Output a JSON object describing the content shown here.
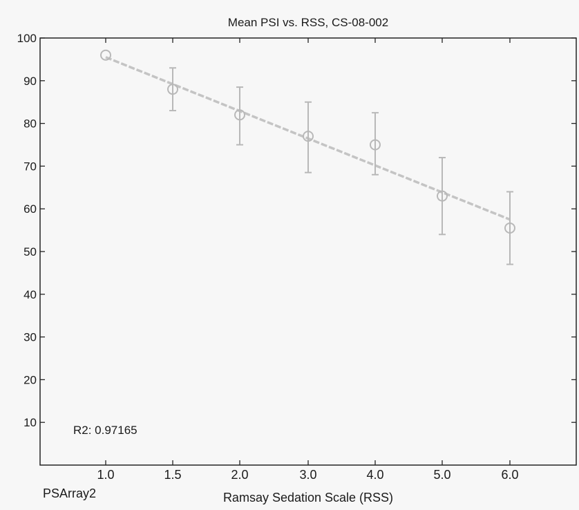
{
  "chart_data": {
    "type": "scatter",
    "title": "Mean PSI vs. RSS, CS-08-002",
    "xlabel": "Ramsay Sedation Scale (RSS)",
    "ylabel": "",
    "ylim": [
      0,
      100
    ],
    "yticks": [
      10,
      20,
      30,
      40,
      50,
      60,
      70,
      80,
      90,
      100
    ],
    "xtick_labels": [
      "1.0",
      "1.5",
      "2.0",
      "3.0",
      "4.0",
      "5.0",
      "6.0"
    ],
    "grid": false,
    "points": [
      {
        "x": "1.0",
        "y": 96,
        "err_low": 96,
        "err_high": 96
      },
      {
        "x": "1.5",
        "y": 88,
        "err_low": 83,
        "err_high": 93
      },
      {
        "x": "2.0",
        "y": 82,
        "err_low": 75,
        "err_high": 88.5
      },
      {
        "x": "3.0",
        "y": 77,
        "err_low": 68.5,
        "err_high": 85
      },
      {
        "x": "4.0",
        "y": 75,
        "err_low": 68,
        "err_high": 82.5
      },
      {
        "x": "5.0",
        "y": 63,
        "err_low": 54,
        "err_high": 72
      },
      {
        "x": "6.0",
        "y": 55.5,
        "err_low": 47,
        "err_high": 64
      }
    ],
    "fit_line": {
      "start": 95.5,
      "end": 57.5
    },
    "annotation": "R2: 0.97165",
    "corner_label": "PSArray2",
    "colors": {
      "marker": "#b8b8b8",
      "fit": "#c4c4c4",
      "axes": "#222222"
    }
  }
}
